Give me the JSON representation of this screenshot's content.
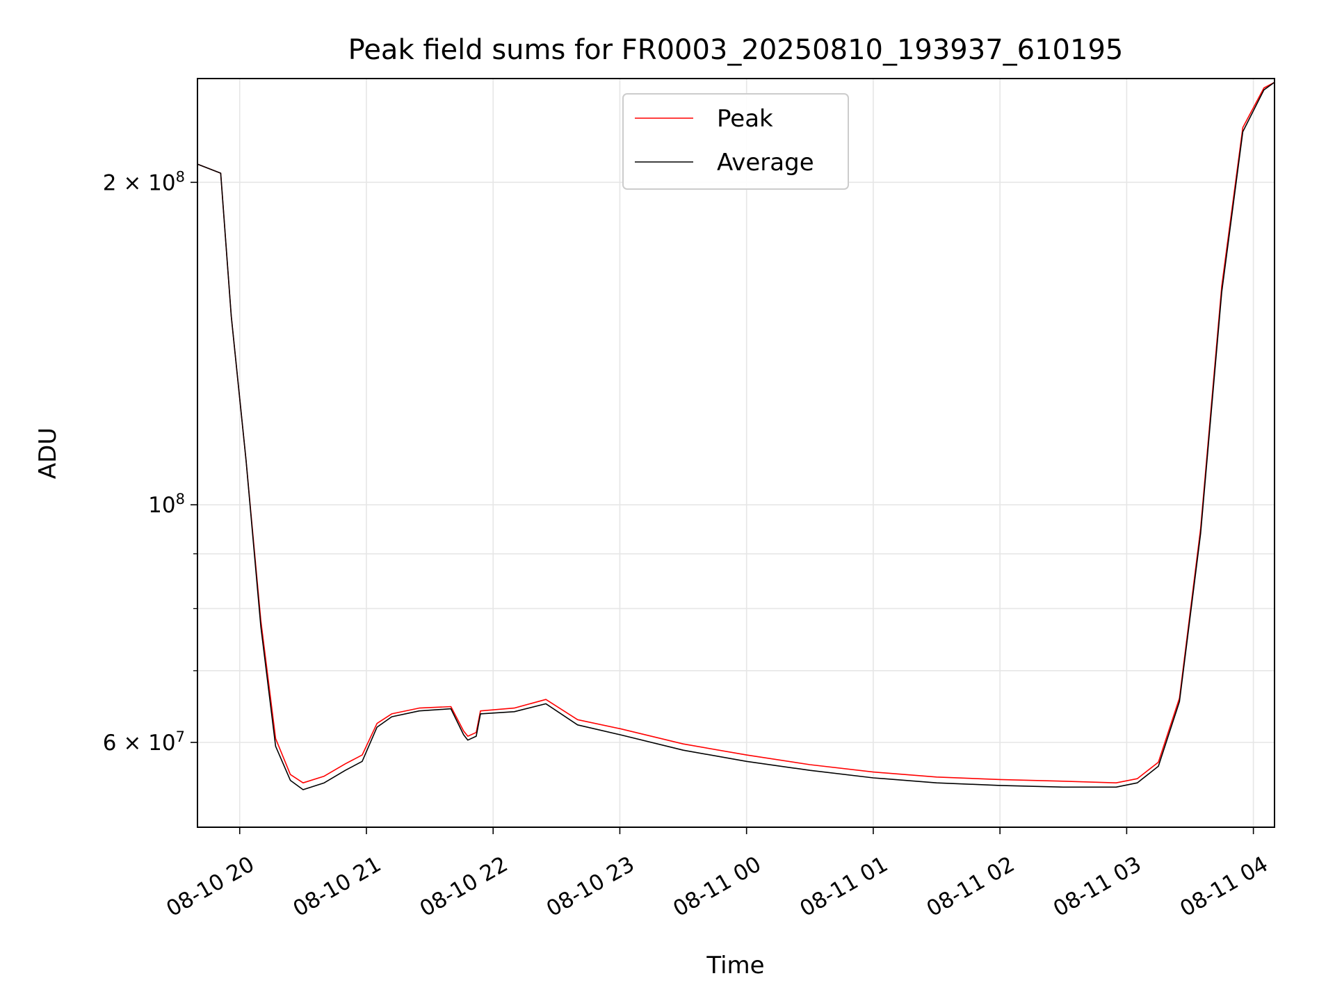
{
  "chart_data": {
    "type": "line",
    "title": "Peak field sums for FR0003_20250810_193937_610195",
    "xlabel": "Time",
    "ylabel": "ADU",
    "y_scale": "log",
    "ylim": [
      50000000,
      250000000
    ],
    "xlim": [
      "2025-08-10T19:40",
      "2025-08-11T04:10"
    ],
    "x_ticks": [
      "08-10 20",
      "08-10 21",
      "08-10 22",
      "08-10 23",
      "08-11 00",
      "08-11 01",
      "08-11 02",
      "08-11 03",
      "08-11 04"
    ],
    "y_ticks": [
      {
        "value": 200000000,
        "base": "2 × 10",
        "exp": "8"
      },
      {
        "value": 100000000,
        "base": "10",
        "exp": "8"
      },
      {
        "value": 60000000,
        "base": "6 × 10",
        "exp": "7"
      }
    ],
    "grid": true,
    "legend_position": "upper-center",
    "series": [
      {
        "name": "Peak",
        "color": "#ff0000",
        "x": [
          "2025-08-10T19:40",
          "2025-08-10T19:51",
          "2025-08-10T19:56",
          "2025-08-10T20:03",
          "2025-08-10T20:10",
          "2025-08-10T20:17",
          "2025-08-10T20:24",
          "2025-08-10T20:30",
          "2025-08-10T20:40",
          "2025-08-10T20:50",
          "2025-08-10T20:58",
          "2025-08-10T21:05",
          "2025-08-10T21:12",
          "2025-08-10T21:25",
          "2025-08-10T21:40",
          "2025-08-10T21:46",
          "2025-08-10T21:48",
          "2025-08-10T21:52",
          "2025-08-10T21:54",
          "2025-08-10T22:10",
          "2025-08-10T22:25",
          "2025-08-10T22:40",
          "2025-08-10T23:00",
          "2025-08-10T23:30",
          "2025-08-11T00:00",
          "2025-08-11T00:30",
          "2025-08-11T01:00",
          "2025-08-11T01:30",
          "2025-08-11T02:00",
          "2025-08-11T02:30",
          "2025-08-11T02:55",
          "2025-08-11T03:05",
          "2025-08-11T03:15",
          "2025-08-11T03:25",
          "2025-08-11T03:35",
          "2025-08-11T03:45",
          "2025-08-11T03:55",
          "2025-08-11T04:05",
          "2025-08-11T04:10"
        ],
        "y": [
          208000000,
          204000000,
          150000000,
          110000000,
          78000000,
          60500000,
          56000000,
          55000000,
          55800000,
          57300000,
          58400000,
          62500000,
          63800000,
          64600000,
          64800000,
          61500000,
          60800000,
          61300000,
          64200000,
          64600000,
          65800000,
          63000000,
          61800000,
          59800000,
          58400000,
          57200000,
          56300000,
          55700000,
          55400000,
          55200000,
          55000000,
          55500000,
          57500000,
          66000000,
          95000000,
          160000000,
          225000000,
          245000000,
          248000000
        ]
      },
      {
        "name": "Average",
        "color": "#000000",
        "x": [
          "2025-08-10T19:40",
          "2025-08-10T19:51",
          "2025-08-10T19:56",
          "2025-08-10T20:03",
          "2025-08-10T20:10",
          "2025-08-10T20:17",
          "2025-08-10T20:24",
          "2025-08-10T20:30",
          "2025-08-10T20:40",
          "2025-08-10T20:50",
          "2025-08-10T20:58",
          "2025-08-10T21:05",
          "2025-08-10T21:12",
          "2025-08-10T21:25",
          "2025-08-10T21:40",
          "2025-08-10T21:46",
          "2025-08-10T21:48",
          "2025-08-10T21:52",
          "2025-08-10T21:54",
          "2025-08-10T22:10",
          "2025-08-10T22:25",
          "2025-08-10T22:40",
          "2025-08-10T23:00",
          "2025-08-10T23:30",
          "2025-08-11T00:00",
          "2025-08-11T00:30",
          "2025-08-11T01:00",
          "2025-08-11T01:30",
          "2025-08-11T02:00",
          "2025-08-11T02:30",
          "2025-08-11T02:55",
          "2025-08-11T03:05",
          "2025-08-11T03:15",
          "2025-08-11T03:25",
          "2025-08-11T03:35",
          "2025-08-11T03:45",
          "2025-08-11T03:55",
          "2025-08-11T04:05",
          "2025-08-11T04:10"
        ],
        "y": [
          208000000,
          204000000,
          150000000,
          110000000,
          77000000,
          59500000,
          55300000,
          54200000,
          55000000,
          56500000,
          57600000,
          62000000,
          63400000,
          64200000,
          64500000,
          61000000,
          60300000,
          60800000,
          63800000,
          64100000,
          65200000,
          62300000,
          61000000,
          59000000,
          57600000,
          56500000,
          55600000,
          55000000,
          54700000,
          54500000,
          54500000,
          55000000,
          57000000,
          65500000,
          94000000,
          158000000,
          223000000,
          244000000,
          248000000
        ]
      }
    ]
  }
}
